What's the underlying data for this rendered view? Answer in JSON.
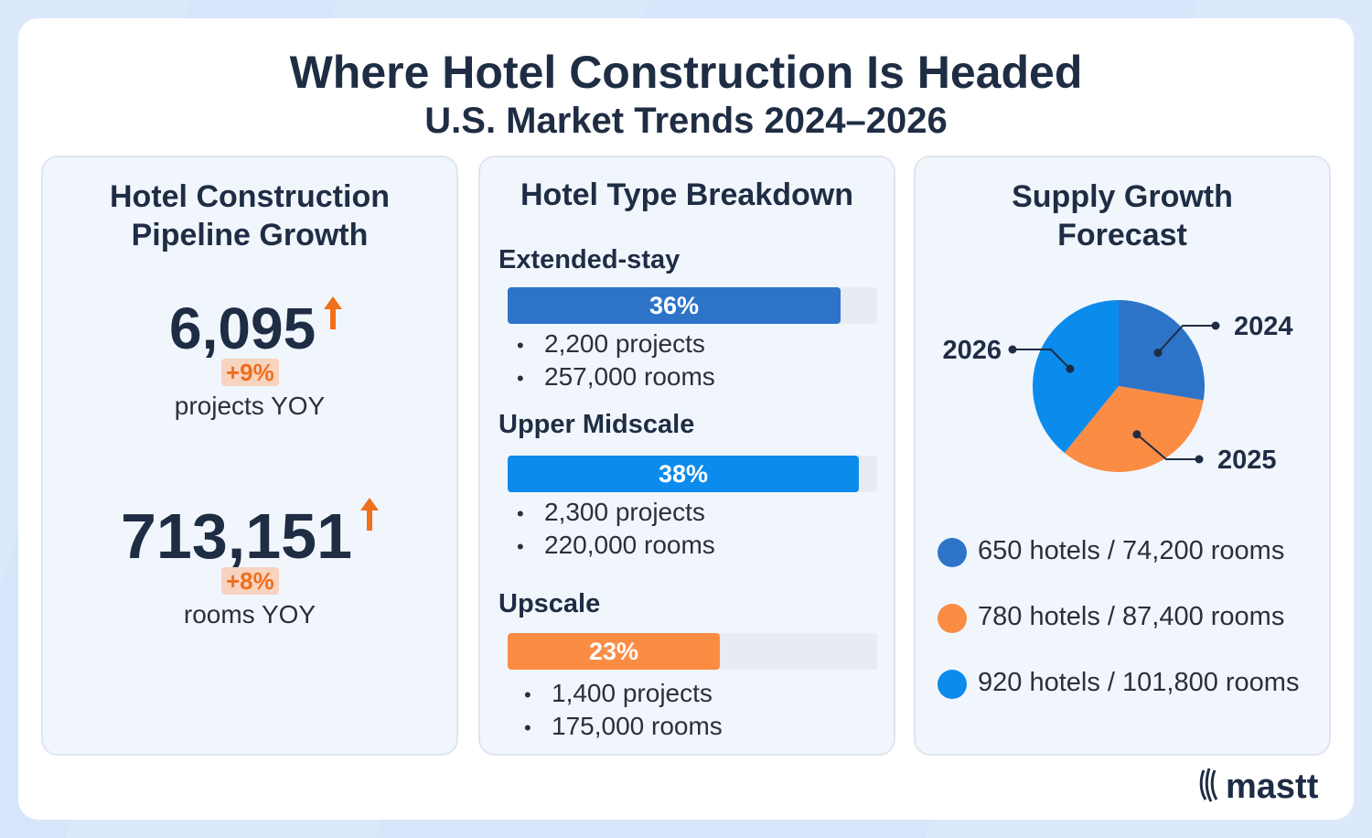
{
  "title": "Where Hotel Construction Is Headed",
  "subtitle": "U.S. Market Trends 2024–2026",
  "pipeline": {
    "title_line1": "Hotel Construction",
    "title_line2": "Pipeline Growth",
    "projects_value": "6,095",
    "projects_change": "+9%",
    "projects_label": "projects YOY",
    "rooms_value": "713,151",
    "rooms_change": "+8%",
    "rooms_label": "rooms YOY"
  },
  "breakdown": {
    "title": "Hotel Type Breakdown",
    "items": [
      {
        "label": "Extended-stay",
        "percent": 36,
        "percent_label": "36%",
        "color": "#2d74c9",
        "projects": "2,200 projects",
        "rooms": "257,000 rooms"
      },
      {
        "label": "Upper Midscale",
        "percent": 38,
        "percent_label": "38%",
        "color": "#0b8bec",
        "projects": "2,300 projects",
        "rooms": "220,000 rooms"
      },
      {
        "label": "Upscale",
        "percent": 23,
        "percent_label": "23%",
        "color": "#fb8c43",
        "projects": "1,400 projects",
        "rooms": "175,000 rooms"
      }
    ]
  },
  "forecast": {
    "title_line1": "Supply Growth",
    "title_line2": "Forecast",
    "legend": [
      {
        "text": "650 hotels / 74,200 rooms",
        "color": "#2d74c9"
      },
      {
        "text": "780 hotels / 87,400 rooms",
        "color": "#fb8c43"
      },
      {
        "text": "920 hotels / 101,800 rooms",
        "color": "#0b8bec"
      }
    ]
  },
  "chart_data": [
    {
      "type": "bar",
      "title": "Hotel Type Breakdown",
      "categories": [
        "Extended-stay",
        "Upper Midscale",
        "Upscale"
      ],
      "values": [
        36,
        38,
        23
      ],
      "unit": "%",
      "projects": [
        2200,
        2300,
        1400
      ],
      "rooms": [
        257000,
        220000,
        175000
      ]
    },
    {
      "type": "pie",
      "title": "Supply Growth Forecast",
      "categories": [
        "2024",
        "2025",
        "2026"
      ],
      "values": [
        650,
        780,
        920
      ],
      "rooms": [
        74200,
        87400,
        101800
      ],
      "colors": [
        "#2d74c9",
        "#fb8c43",
        "#0b8bec"
      ]
    }
  ],
  "logo": "mastt"
}
